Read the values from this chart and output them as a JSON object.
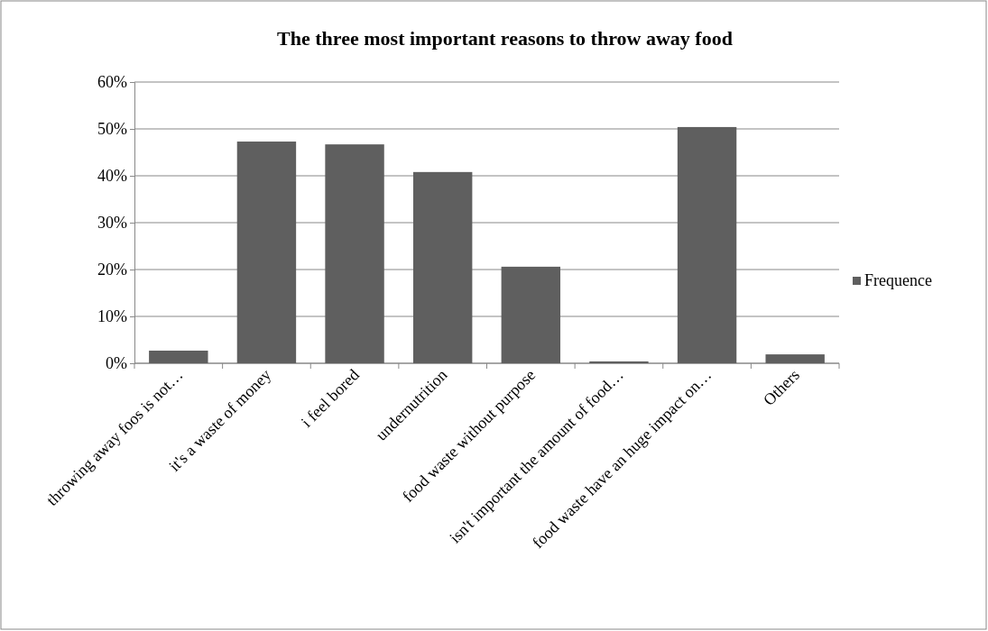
{
  "chart_data": {
    "type": "bar",
    "title": "The three most important reasons to throw away food",
    "categories": [
      "throwing away foos is not…",
      "it's a waste of money",
      "i feel bored",
      "undernutrition",
      "food waste without purpose",
      "isn't important the amount of food…",
      "food waste have an huge impact on…",
      "Others"
    ],
    "series": [
      {
        "name": "Frequence",
        "color": "#5f5f5f",
        "values": [
          2.7,
          47.3,
          46.7,
          40.8,
          20.6,
          0.4,
          50.4,
          1.9
        ]
      }
    ],
    "ylim": [
      0,
      60
    ],
    "yticks": [
      {
        "value": 0,
        "label": "0%"
      },
      {
        "value": 10,
        "label": "10%"
      },
      {
        "value": 20,
        "label": "20%"
      },
      {
        "value": 30,
        "label": "30%"
      },
      {
        "value": 40,
        "label": "40%"
      },
      {
        "value": 50,
        "label": "50%"
      },
      {
        "value": 60,
        "label": "60%"
      }
    ],
    "grid": "y",
    "legend": "right"
  }
}
